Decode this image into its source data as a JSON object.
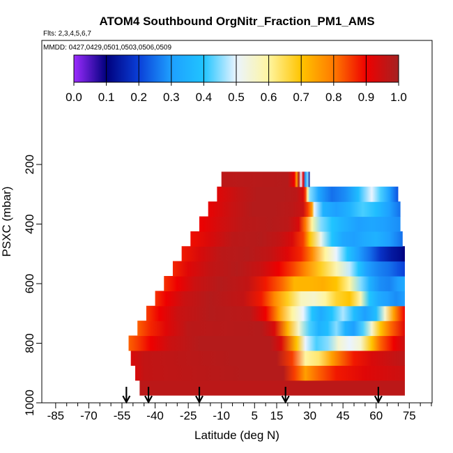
{
  "chart_data": {
    "type": "heatmap",
    "title": "ATOM4 Southbound OrgNitr_Fraction_PM1_AMS",
    "flights_note": "Flts: 2,3,4,5,6,7",
    "dates_note": "MMDD: 0427,0429,0501,0503,0506,0509",
    "xlabel": "Latitude (deg N)",
    "ylabel": "PSXC (mbar)",
    "xlim": [
      -90,
      85
    ],
    "ylim": [
      1000,
      100
    ],
    "x_ticks": [
      -85,
      -70,
      -55,
      -40,
      -25,
      -10,
      5,
      15,
      30,
      45,
      60,
      75
    ],
    "x_tick_labels": [
      "-85",
      "-70",
      "-55",
      "-40",
      "-25",
      "-10",
      "5",
      "15",
      "30",
      "45",
      "60",
      "75"
    ],
    "y_ticks": [
      200,
      400,
      600,
      800,
      1000
    ],
    "y_tick_labels": [
      "200",
      "400",
      "600",
      "800",
      "1000"
    ],
    "colorbar": {
      "min": 0.0,
      "max": 1.0,
      "tick_values": [
        0.0,
        0.1,
        0.2,
        0.3,
        0.4,
        0.5,
        0.6,
        0.7,
        0.8,
        0.9,
        1.0
      ],
      "tick_labels": [
        "0.0",
        "0.1",
        "0.2",
        "0.3",
        "0.4",
        "0.5",
        "0.6",
        "0.7",
        "0.8",
        "0.9",
        "1.0"
      ],
      "stops": [
        [
          0.0,
          "#9c2bff"
        ],
        [
          0.1,
          "#00007d"
        ],
        [
          0.2,
          "#0a3fd8"
        ],
        [
          0.3,
          "#1ea0ff"
        ],
        [
          0.4,
          "#20c4ff"
        ],
        [
          0.5,
          "#eaf4ff"
        ],
        [
          0.6,
          "#fff5a0"
        ],
        [
          0.7,
          "#ffc400"
        ],
        [
          0.8,
          "#ff7a00"
        ],
        [
          0.9,
          "#ee0000"
        ],
        [
          1.0,
          "#a52222"
        ]
      ]
    },
    "rows": [
      {
        "p": 950,
        "x0": -47,
        "x1": 73,
        "segs": [
          [
            -47,
            0.97
          ],
          [
            73,
            0.97
          ]
        ]
      },
      {
        "p": 900,
        "x0": -49,
        "x1": 73,
        "segs": [
          [
            -49,
            0.93
          ],
          [
            -45,
            0.96
          ],
          [
            0,
            0.98
          ],
          [
            18,
            0.98
          ],
          [
            23,
            0.85
          ],
          [
            28,
            0.75
          ],
          [
            34,
            0.82
          ],
          [
            42,
            0.88
          ],
          [
            55,
            0.92
          ],
          [
            73,
            0.95
          ]
        ]
      },
      {
        "p": 850,
        "x0": -51,
        "x1": 73,
        "segs": [
          [
            -51,
            0.93
          ],
          [
            -45,
            0.96
          ],
          [
            -5,
            0.98
          ],
          [
            15,
            0.98
          ],
          [
            22,
            0.85
          ],
          [
            28,
            0.6
          ],
          [
            34,
            0.63
          ],
          [
            40,
            0.75
          ],
          [
            50,
            0.88
          ],
          [
            58,
            0.93
          ],
          [
            73,
            0.97
          ]
        ]
      },
      {
        "p": 800,
        "x0": -52,
        "x1": 73,
        "segs": [
          [
            -52,
            0.82
          ],
          [
            -48,
            0.85
          ],
          [
            -42,
            0.9
          ],
          [
            -33,
            0.95
          ],
          [
            -20,
            0.98
          ],
          [
            12,
            0.98
          ],
          [
            17,
            0.93
          ],
          [
            24,
            0.7
          ],
          [
            28,
            0.5
          ],
          [
            33,
            0.42
          ],
          [
            38,
            0.45
          ],
          [
            43,
            0.55
          ],
          [
            48,
            0.5
          ],
          [
            53,
            0.55
          ],
          [
            58,
            0.7
          ],
          [
            62,
            0.82
          ],
          [
            68,
            0.9
          ],
          [
            73,
            0.95
          ]
        ]
      },
      {
        "p": 750,
        "x0": -48,
        "x1": 73,
        "segs": [
          [
            -48,
            0.82
          ],
          [
            -42,
            0.87
          ],
          [
            -35,
            0.92
          ],
          [
            -25,
            0.97
          ],
          [
            8,
            0.98
          ],
          [
            14,
            0.93
          ],
          [
            20,
            0.72
          ],
          [
            25,
            0.55
          ],
          [
            30,
            0.42
          ],
          [
            34,
            0.35
          ],
          [
            38,
            0.38
          ],
          [
            42,
            0.45
          ],
          [
            46,
            0.35
          ],
          [
            50,
            0.3
          ],
          [
            54,
            0.42
          ],
          [
            58,
            0.55
          ],
          [
            62,
            0.7
          ],
          [
            67,
            0.82
          ],
          [
            73,
            0.92
          ]
        ]
      },
      {
        "p": 700,
        "x0": -44,
        "x1": 73,
        "segs": [
          [
            -44,
            0.85
          ],
          [
            -38,
            0.9
          ],
          [
            -30,
            0.95
          ],
          [
            -15,
            0.98
          ],
          [
            3,
            0.97
          ],
          [
            10,
            0.9
          ],
          [
            16,
            0.75
          ],
          [
            22,
            0.6
          ],
          [
            27,
            0.5
          ],
          [
            31,
            0.4
          ],
          [
            35,
            0.33
          ],
          [
            40,
            0.4
          ],
          [
            45,
            0.47
          ],
          [
            50,
            0.38
          ],
          [
            55,
            0.3
          ],
          [
            60,
            0.38
          ],
          [
            64,
            0.55
          ],
          [
            68,
            0.75
          ],
          [
            73,
            0.9
          ]
        ]
      },
      {
        "p": 650,
        "x0": -40,
        "x1": 73,
        "segs": [
          [
            -40,
            0.86
          ],
          [
            -35,
            0.9
          ],
          [
            -27,
            0.95
          ],
          [
            -15,
            0.98
          ],
          [
            0,
            0.96
          ],
          [
            8,
            0.88
          ],
          [
            14,
            0.78
          ],
          [
            20,
            0.68
          ],
          [
            26,
            0.57
          ],
          [
            32,
            0.55
          ],
          [
            37,
            0.6
          ],
          [
            42,
            0.67
          ],
          [
            48,
            0.7
          ],
          [
            53,
            0.58
          ],
          [
            57,
            0.4
          ],
          [
            61,
            0.33
          ],
          [
            65,
            0.3
          ],
          [
            69,
            0.28
          ],
          [
            73,
            0.3
          ]
        ]
      },
      {
        "p": 600,
        "x0": -36,
        "x1": 73,
        "segs": [
          [
            -36,
            0.86
          ],
          [
            -30,
            0.9
          ],
          [
            -22,
            0.95
          ],
          [
            -10,
            0.98
          ],
          [
            2,
            0.96
          ],
          [
            10,
            0.88
          ],
          [
            17,
            0.82
          ],
          [
            23,
            0.72
          ],
          [
            30,
            0.72
          ],
          [
            36,
            0.73
          ],
          [
            42,
            0.7
          ],
          [
            48,
            0.6
          ],
          [
            53,
            0.45
          ],
          [
            57,
            0.35
          ],
          [
            62,
            0.28
          ],
          [
            66,
            0.27
          ],
          [
            70,
            0.3
          ],
          [
            73,
            0.33
          ]
        ]
      },
      {
        "p": 550,
        "x0": -32,
        "x1": 73,
        "segs": [
          [
            -32,
            0.87
          ],
          [
            -25,
            0.92
          ],
          [
            -15,
            0.96
          ],
          [
            -3,
            0.98
          ],
          [
            8,
            0.95
          ],
          [
            16,
            0.9
          ],
          [
            22,
            0.85
          ],
          [
            28,
            0.78
          ],
          [
            35,
            0.68
          ],
          [
            42,
            0.58
          ],
          [
            48,
            0.48
          ],
          [
            52,
            0.4
          ],
          [
            56,
            0.3
          ],
          [
            61,
            0.27
          ],
          [
            66,
            0.25
          ],
          [
            70,
            0.22
          ],
          [
            73,
            0.2
          ]
        ]
      },
      {
        "p": 500,
        "x0": -28,
        "x1": 73,
        "segs": [
          [
            -28,
            0.88
          ],
          [
            -20,
            0.93
          ],
          [
            -10,
            0.97
          ],
          [
            2,
            0.98
          ],
          [
            12,
            0.96
          ],
          [
            20,
            0.92
          ],
          [
            26,
            0.87
          ],
          [
            31,
            0.78
          ],
          [
            37,
            0.6
          ],
          [
            42,
            0.5
          ],
          [
            47,
            0.4
          ],
          [
            52,
            0.3
          ],
          [
            57,
            0.25
          ],
          [
            62,
            0.18
          ],
          [
            67,
            0.14
          ],
          [
            71,
            0.12
          ],
          [
            73,
            0.1
          ]
        ]
      },
      {
        "p": 450,
        "x0": -24,
        "x1": 72,
        "segs": [
          [
            -24,
            0.89
          ],
          [
            -15,
            0.93
          ],
          [
            -5,
            0.97
          ],
          [
            8,
            0.98
          ],
          [
            16,
            0.96
          ],
          [
            22,
            0.93
          ],
          [
            27,
            0.85
          ],
          [
            30,
            0.7
          ],
          [
            35,
            0.52
          ],
          [
            40,
            0.4
          ],
          [
            45,
            0.32
          ],
          [
            50,
            0.3
          ],
          [
            55,
            0.33
          ],
          [
            60,
            0.35
          ],
          [
            66,
            0.3
          ],
          [
            72,
            0.25
          ]
        ]
      },
      {
        "p": 400,
        "x0": -20,
        "x1": 71,
        "segs": [
          [
            -20,
            0.9
          ],
          [
            -10,
            0.94
          ],
          [
            0,
            0.97
          ],
          [
            12,
            0.98
          ],
          [
            20,
            0.97
          ],
          [
            25,
            0.93
          ],
          [
            28,
            0.8
          ],
          [
            31,
            0.6
          ],
          [
            35,
            0.45
          ],
          [
            40,
            0.4
          ],
          [
            45,
            0.35
          ],
          [
            52,
            0.3
          ],
          [
            58,
            0.32
          ],
          [
            64,
            0.3
          ],
          [
            71,
            0.28
          ]
        ]
      },
      {
        "p": 350,
        "x0": -16,
        "x1": 71,
        "segs": [
          [
            -16,
            0.91
          ],
          [
            -6,
            0.95
          ],
          [
            4,
            0.98
          ],
          [
            14,
            0.98
          ],
          [
            22,
            0.97
          ],
          [
            27,
            0.95
          ],
          [
            29,
            0.85
          ],
          [
            31,
            0.75
          ],
          [
            32,
            0.5
          ],
          [
            36,
            0.35
          ],
          [
            42,
            0.3
          ],
          [
            48,
            0.35
          ],
          [
            54,
            0.42
          ],
          [
            60,
            0.38
          ],
          [
            66,
            0.3
          ],
          [
            71,
            0.25
          ]
        ]
      },
      {
        "p": 300,
        "x0": -12,
        "x1": 70,
        "segs": [
          [
            -12,
            0.92
          ],
          [
            -2,
            0.96
          ],
          [
            6,
            0.98
          ],
          [
            18,
            0.98
          ],
          [
            24,
            0.97
          ],
          [
            27,
            0.93
          ],
          [
            28,
            0.85
          ],
          [
            29,
            0.6
          ],
          [
            30,
            0.45
          ],
          [
            34,
            0.32
          ],
          [
            40,
            0.25
          ],
          [
            46,
            0.28
          ],
          [
            52,
            0.38
          ],
          [
            58,
            0.5
          ],
          [
            62,
            0.42
          ],
          [
            66,
            0.3
          ],
          [
            70,
            0.22
          ]
        ]
      },
      {
        "p": 250,
        "x0": -10,
        "x1": 30,
        "segs": [
          [
            -10,
            0.97
          ],
          [
            20,
            0.98
          ],
          [
            23,
            0.9
          ],
          [
            24,
            0.75
          ],
          [
            25,
            0.98
          ],
          [
            26,
            0.5
          ],
          [
            27,
            0.9
          ],
          [
            28,
            0.3
          ],
          [
            29,
            0.45
          ],
          [
            30,
            0.12
          ]
        ]
      }
    ],
    "profile_markers": [
      -53,
      -43,
      -20,
      19,
      61
    ]
  }
}
